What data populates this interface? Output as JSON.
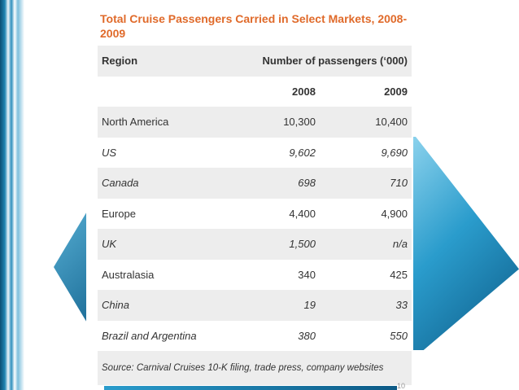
{
  "title": "Total Cruise Passengers Carried in Select Markets, 2008-2009",
  "header": {
    "region_label": "Region",
    "passengers_label": "Number of passengers (‘000)",
    "year_2008": "2008",
    "year_2009": "2009"
  },
  "rows": [
    {
      "region": "North America",
      "y2008": "10,300",
      "y2009": "10,400"
    },
    {
      "region": "US",
      "y2008": "9,602",
      "y2009": "9,690"
    },
    {
      "region": "Canada",
      "y2008": "698",
      "y2009": "710"
    },
    {
      "region": "Europe",
      "y2008": "4,400",
      "y2009": "4,900"
    },
    {
      "region": "UK",
      "y2008": "1,500",
      "y2009": "n/a"
    },
    {
      "region": "Australasia",
      "y2008": "340",
      "y2009": "425"
    },
    {
      "region": "China",
      "y2008": "19",
      "y2009": "33"
    },
    {
      "region": "Brazil and Argentina",
      "y2008": "380",
      "y2009": "550"
    }
  ],
  "source": "Source: Carnival Cruises 10-K filing, trade press, company websites",
  "page_number": "10",
  "colors": {
    "title": "#e06a2a",
    "accent": "#2a9ccc"
  }
}
